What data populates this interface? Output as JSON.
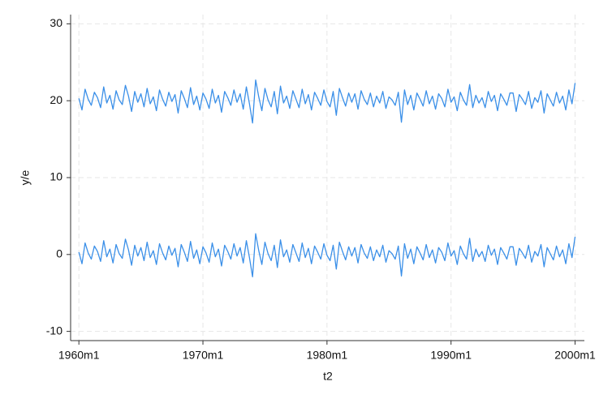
{
  "chart_data": {
    "type": "line",
    "y_label": "y/e",
    "x_label": "t2",
    "x": [
      0,
      3,
      6,
      9,
      12,
      15,
      18,
      21,
      24,
      27,
      30,
      33,
      36,
      39,
      42,
      45,
      48,
      51,
      54,
      57,
      60,
      63,
      66,
      69,
      72,
      75,
      78,
      81,
      84,
      87,
      90,
      93,
      96,
      99,
      102,
      105,
      108,
      111,
      114,
      117,
      120,
      123,
      126,
      129,
      132,
      135,
      138,
      141,
      144,
      147,
      150,
      153,
      156,
      159,
      162,
      165,
      168,
      171,
      174,
      177,
      180,
      183,
      186,
      189,
      192,
      195,
      198,
      201,
      204,
      207,
      210,
      213,
      216,
      219,
      222,
      225,
      228,
      231,
      234,
      237,
      240,
      243,
      246,
      249,
      252,
      255,
      258,
      261,
      264,
      267,
      270,
      273,
      276,
      279,
      282,
      285,
      288,
      291,
      294,
      297,
      300,
      303,
      306,
      309,
      312,
      315,
      318,
      321,
      324,
      327,
      330,
      333,
      336,
      339,
      342,
      345,
      348,
      351,
      354,
      357,
      360,
      363,
      366,
      369,
      372,
      375,
      378,
      381,
      384,
      387,
      390,
      393,
      396,
      399,
      402,
      405,
      408,
      411,
      414,
      417,
      420,
      423,
      426,
      429,
      432,
      435,
      438,
      441,
      444,
      447,
      450,
      453,
      456,
      459,
      462,
      465,
      468,
      471,
      474,
      477,
      480
    ],
    "series": [
      {
        "color": "#3a8fe8",
        "values": [
          20.3,
          18.8,
          21.5,
          20.2,
          19.4,
          21.1,
          20.4,
          19.1,
          21.8,
          19.7,
          20.7,
          18.9,
          21.3,
          20.1,
          19.5,
          22,
          20.6,
          18.6,
          21.2,
          19.8,
          20.9,
          19.2,
          21.6,
          19.6,
          20.5,
          18.7,
          21.4,
          20.2,
          19.3,
          21.1,
          19.9,
          20.8,
          18.4,
          21.3,
          20.3,
          19.1,
          21.7,
          19.5,
          20.6,
          18.8,
          21,
          20.2,
          19,
          21.5,
          19.7,
          20.7,
          18.5,
          21.2,
          20.4,
          19.4,
          21.4,
          19.8,
          20.9,
          18.9,
          21.8,
          19.6,
          17.1,
          22.7,
          20.5,
          18.7,
          21.6,
          20.1,
          19.2,
          21.2,
          18.3,
          21.9,
          19.7,
          20.6,
          19,
          21.3,
          20.2,
          19.1,
          21.5,
          19.6,
          20.8,
          18.8,
          21.1,
          20.3,
          19.4,
          21.4,
          19.9,
          19.2,
          21.2,
          18.1,
          21.6,
          20.4,
          19.3,
          21,
          19.8,
          20.9,
          18.9,
          21.3,
          20.2,
          19.5,
          21,
          19.2,
          20.6,
          19.7,
          21.2,
          19,
          20.5,
          20.1,
          19.4,
          21.1,
          17.2,
          21.4,
          19.5,
          20.7,
          18.8,
          21,
          20.2,
          19.3,
          21.3,
          19.6,
          20.6,
          18.9,
          20.9,
          20.3,
          19.2,
          21.5,
          19.8,
          20.5,
          18.7,
          21.1,
          20.1,
          19.4,
          22.1,
          19.1,
          20.7,
          19.7,
          20.4,
          19.1,
          21.2,
          19.9,
          20.7,
          18.7,
          20.9,
          20.2,
          19.4,
          21,
          21,
          18.6,
          20.8,
          20.2,
          19.5,
          21.2,
          19,
          20.4,
          19.8,
          21.3,
          18.4,
          20.9,
          20.1,
          19.3,
          21.1,
          19.7,
          20.6,
          18.8,
          21.4,
          19.6,
          22.3
        ]
      },
      {
        "color": "#3a8fe8",
        "values": [
          0.3,
          -1.2,
          1.5,
          0.2,
          -0.6,
          1.1,
          0.4,
          -0.9,
          1.8,
          -0.3,
          0.7,
          -1.1,
          1.3,
          0.1,
          -0.5,
          2.0,
          0.6,
          -1.4,
          1.2,
          -0.2,
          0.9,
          -0.8,
          1.6,
          -0.4,
          0.5,
          -1.3,
          1.4,
          0.2,
          -0.7,
          1.1,
          -0.1,
          0.8,
          -1.6,
          1.3,
          0.3,
          -0.9,
          1.7,
          -0.5,
          0.6,
          -1.2,
          1.0,
          0.2,
          -1.0,
          1.5,
          -0.3,
          0.7,
          -1.5,
          1.2,
          0.4,
          -0.6,
          1.4,
          -0.2,
          0.9,
          -1.1,
          1.8,
          -0.4,
          -2.9,
          2.7,
          0.5,
          -1.3,
          1.6,
          0.1,
          -0.8,
          1.2,
          -1.7,
          1.9,
          -0.3,
          0.6,
          -1.0,
          1.3,
          0.2,
          -0.9,
          1.5,
          -0.4,
          0.8,
          -1.2,
          1.1,
          0.3,
          -0.6,
          1.4,
          -0.1,
          -0.8,
          1.2,
          -1.9,
          1.6,
          0.4,
          -0.7,
          1.0,
          -0.2,
          0.9,
          -1.1,
          1.3,
          0.2,
          -0.5,
          1.0,
          -0.8,
          0.6,
          -0.3,
          1.2,
          -1.0,
          0.5,
          0.1,
          -0.6,
          1.1,
          -2.8,
          1.4,
          -0.5,
          0.7,
          -1.2,
          1.0,
          0.2,
          -0.7,
          1.3,
          -0.4,
          0.6,
          -1.1,
          0.9,
          0.3,
          -0.8,
          1.5,
          -0.2,
          0.5,
          -1.3,
          1.1,
          0.1,
          -0.6,
          2.1,
          -0.9,
          0.7,
          -0.3,
          0.4,
          -0.9,
          1.2,
          -0.1,
          0.7,
          -1.3,
          0.9,
          0.2,
          -0.6,
          1.0,
          1.0,
          -1.4,
          0.8,
          0.2,
          -0.5,
          1.2,
          -1.0,
          0.4,
          -0.2,
          1.3,
          -1.6,
          0.9,
          0.1,
          -0.7,
          1.1,
          -0.3,
          0.6,
          -1.2,
          1.4,
          -0.4,
          2.3
        ]
      }
    ],
    "xlim": [
      -8,
      489
    ],
    "ylim": [
      -11.2,
      31.2
    ],
    "xticks": [
      {
        "value": 0,
        "label": "1960m1"
      },
      {
        "value": 120,
        "label": "1970m1"
      },
      {
        "value": 240,
        "label": "1980m1"
      },
      {
        "value": 360,
        "label": "1990m1"
      },
      {
        "value": 480,
        "label": "2000m1"
      }
    ],
    "yticks": [
      -10,
      0,
      10,
      20,
      30
    ],
    "grid": true
  }
}
